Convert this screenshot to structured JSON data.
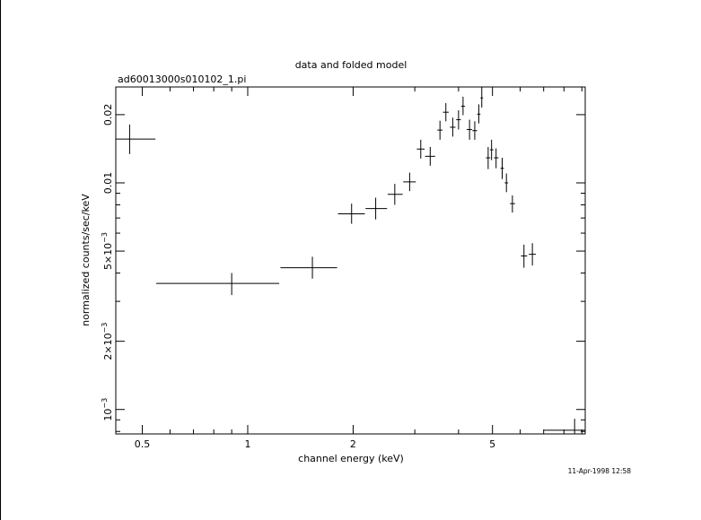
{
  "chart_data": {
    "type": "scatter",
    "title": "data and folded model",
    "subtitle": "ad60013000s010102_1.pi",
    "xlabel": "channel energy (keV)",
    "ylabel": "normalized counts/sec/keV",
    "timestamp": "11-Apr-1998 12:58",
    "xscale": "log",
    "yscale": "log",
    "xlim": [
      0.42,
      9.2
    ],
    "ylim": [
      0.00078,
      0.0265
    ],
    "x_ticks": [
      {
        "value": 0.5,
        "label": "0.5"
      },
      {
        "value": 1,
        "label": "1"
      },
      {
        "value": 2,
        "label": "2"
      },
      {
        "value": 5,
        "label": "5"
      }
    ],
    "y_ticks": [
      {
        "value": 0.001,
        "base": "10",
        "exp": "−3"
      },
      {
        "value": 0.002,
        "base": "2×10",
        "exp": "−3"
      },
      {
        "value": 0.005,
        "base": "5×10",
        "exp": "−3"
      },
      {
        "value": 0.01,
        "label": "0.01"
      },
      {
        "value": 0.02,
        "label": "0.02"
      }
    ],
    "points": [
      {
        "x": 0.46,
        "xlo": 0.42,
        "xhi": 0.545,
        "y": 0.0156,
        "ylo": 0.0134,
        "yhi": 0.0181
      },
      {
        "x": 0.9,
        "xlo": 0.548,
        "xhi": 1.23,
        "y": 0.0036,
        "ylo": 0.0032,
        "yhi": 0.004
      },
      {
        "x": 1.53,
        "xlo": 1.24,
        "xhi": 1.8,
        "y": 0.00422,
        "ylo": 0.00378,
        "yhi": 0.00472
      },
      {
        "x": 1.98,
        "xlo": 1.81,
        "xhi": 2.16,
        "y": 0.0073,
        "ylo": 0.0066,
        "yhi": 0.0081
      },
      {
        "x": 2.32,
        "xlo": 2.17,
        "xhi": 2.5,
        "y": 0.0077,
        "ylo": 0.0069,
        "yhi": 0.0086
      },
      {
        "x": 2.63,
        "xlo": 2.51,
        "xhi": 2.77,
        "y": 0.0089,
        "ylo": 0.008,
        "yhi": 0.0099
      },
      {
        "x": 2.9,
        "xlo": 2.78,
        "xhi": 3.02,
        "y": 0.0101,
        "ylo": 0.0092,
        "yhi": 0.0111
      },
      {
        "x": 3.12,
        "xlo": 3.04,
        "xhi": 3.2,
        "y": 0.0141,
        "ylo": 0.0128,
        "yhi": 0.0155
      },
      {
        "x": 3.32,
        "xlo": 3.21,
        "xhi": 3.43,
        "y": 0.0131,
        "ylo": 0.0119,
        "yhi": 0.0144
      },
      {
        "x": 3.54,
        "xlo": 3.48,
        "xhi": 3.6,
        "y": 0.0171,
        "ylo": 0.0155,
        "yhi": 0.0188
      },
      {
        "x": 3.68,
        "xlo": 3.61,
        "xhi": 3.75,
        "y": 0.0205,
        "ylo": 0.0187,
        "yhi": 0.0225
      },
      {
        "x": 3.85,
        "xlo": 3.78,
        "xhi": 3.92,
        "y": 0.0176,
        "ylo": 0.016,
        "yhi": 0.0194
      },
      {
        "x": 4.0,
        "xlo": 3.94,
        "xhi": 4.06,
        "y": 0.019,
        "ylo": 0.0172,
        "yhi": 0.0209
      },
      {
        "x": 4.12,
        "xlo": 4.07,
        "xhi": 4.17,
        "y": 0.0218,
        "ylo": 0.0199,
        "yhi": 0.024
      },
      {
        "x": 4.3,
        "xlo": 4.22,
        "xhi": 4.37,
        "y": 0.0172,
        "ylo": 0.0155,
        "yhi": 0.019
      },
      {
        "x": 4.45,
        "xlo": 4.38,
        "xhi": 4.52,
        "y": 0.017,
        "ylo": 0.0155,
        "yhi": 0.0187
      },
      {
        "x": 4.57,
        "xlo": 4.52,
        "xhi": 4.62,
        "y": 0.0201,
        "ylo": 0.0183,
        "yhi": 0.0222
      },
      {
        "x": 4.66,
        "xlo": 4.62,
        "xhi": 4.7,
        "y": 0.0237,
        "ylo": 0.0215,
        "yhi": 0.0265
      },
      {
        "x": 4.86,
        "xlo": 4.79,
        "xhi": 4.93,
        "y": 0.0129,
        "ylo": 0.0115,
        "yhi": 0.0144
      },
      {
        "x": 4.97,
        "xlo": 4.92,
        "xhi": 5.03,
        "y": 0.014,
        "ylo": 0.0126,
        "yhi": 0.0155
      },
      {
        "x": 5.12,
        "xlo": 5.05,
        "xhi": 5.2,
        "y": 0.0129,
        "ylo": 0.0116,
        "yhi": 0.0142
      },
      {
        "x": 5.33,
        "xlo": 5.27,
        "xhi": 5.39,
        "y": 0.0116,
        "ylo": 0.0104,
        "yhi": 0.0129
      },
      {
        "x": 5.48,
        "xlo": 5.42,
        "xhi": 5.54,
        "y": 0.01,
        "ylo": 0.0091,
        "yhi": 0.011
      },
      {
        "x": 5.7,
        "xlo": 5.61,
        "xhi": 5.8,
        "y": 0.0081,
        "ylo": 0.0074,
        "yhi": 0.0088
      },
      {
        "x": 6.15,
        "xlo": 6.03,
        "xhi": 6.28,
        "y": 0.00476,
        "ylo": 0.00422,
        "yhi": 0.00534
      },
      {
        "x": 6.5,
        "xlo": 6.35,
        "xhi": 6.65,
        "y": 0.00484,
        "ylo": 0.00432,
        "yhi": 0.00542
      },
      {
        "x": 8.58,
        "xlo": 7.0,
        "xhi": 9.2,
        "y": 0.00081,
        "ylo": 0.00072,
        "yhi": 0.00091
      }
    ]
  }
}
